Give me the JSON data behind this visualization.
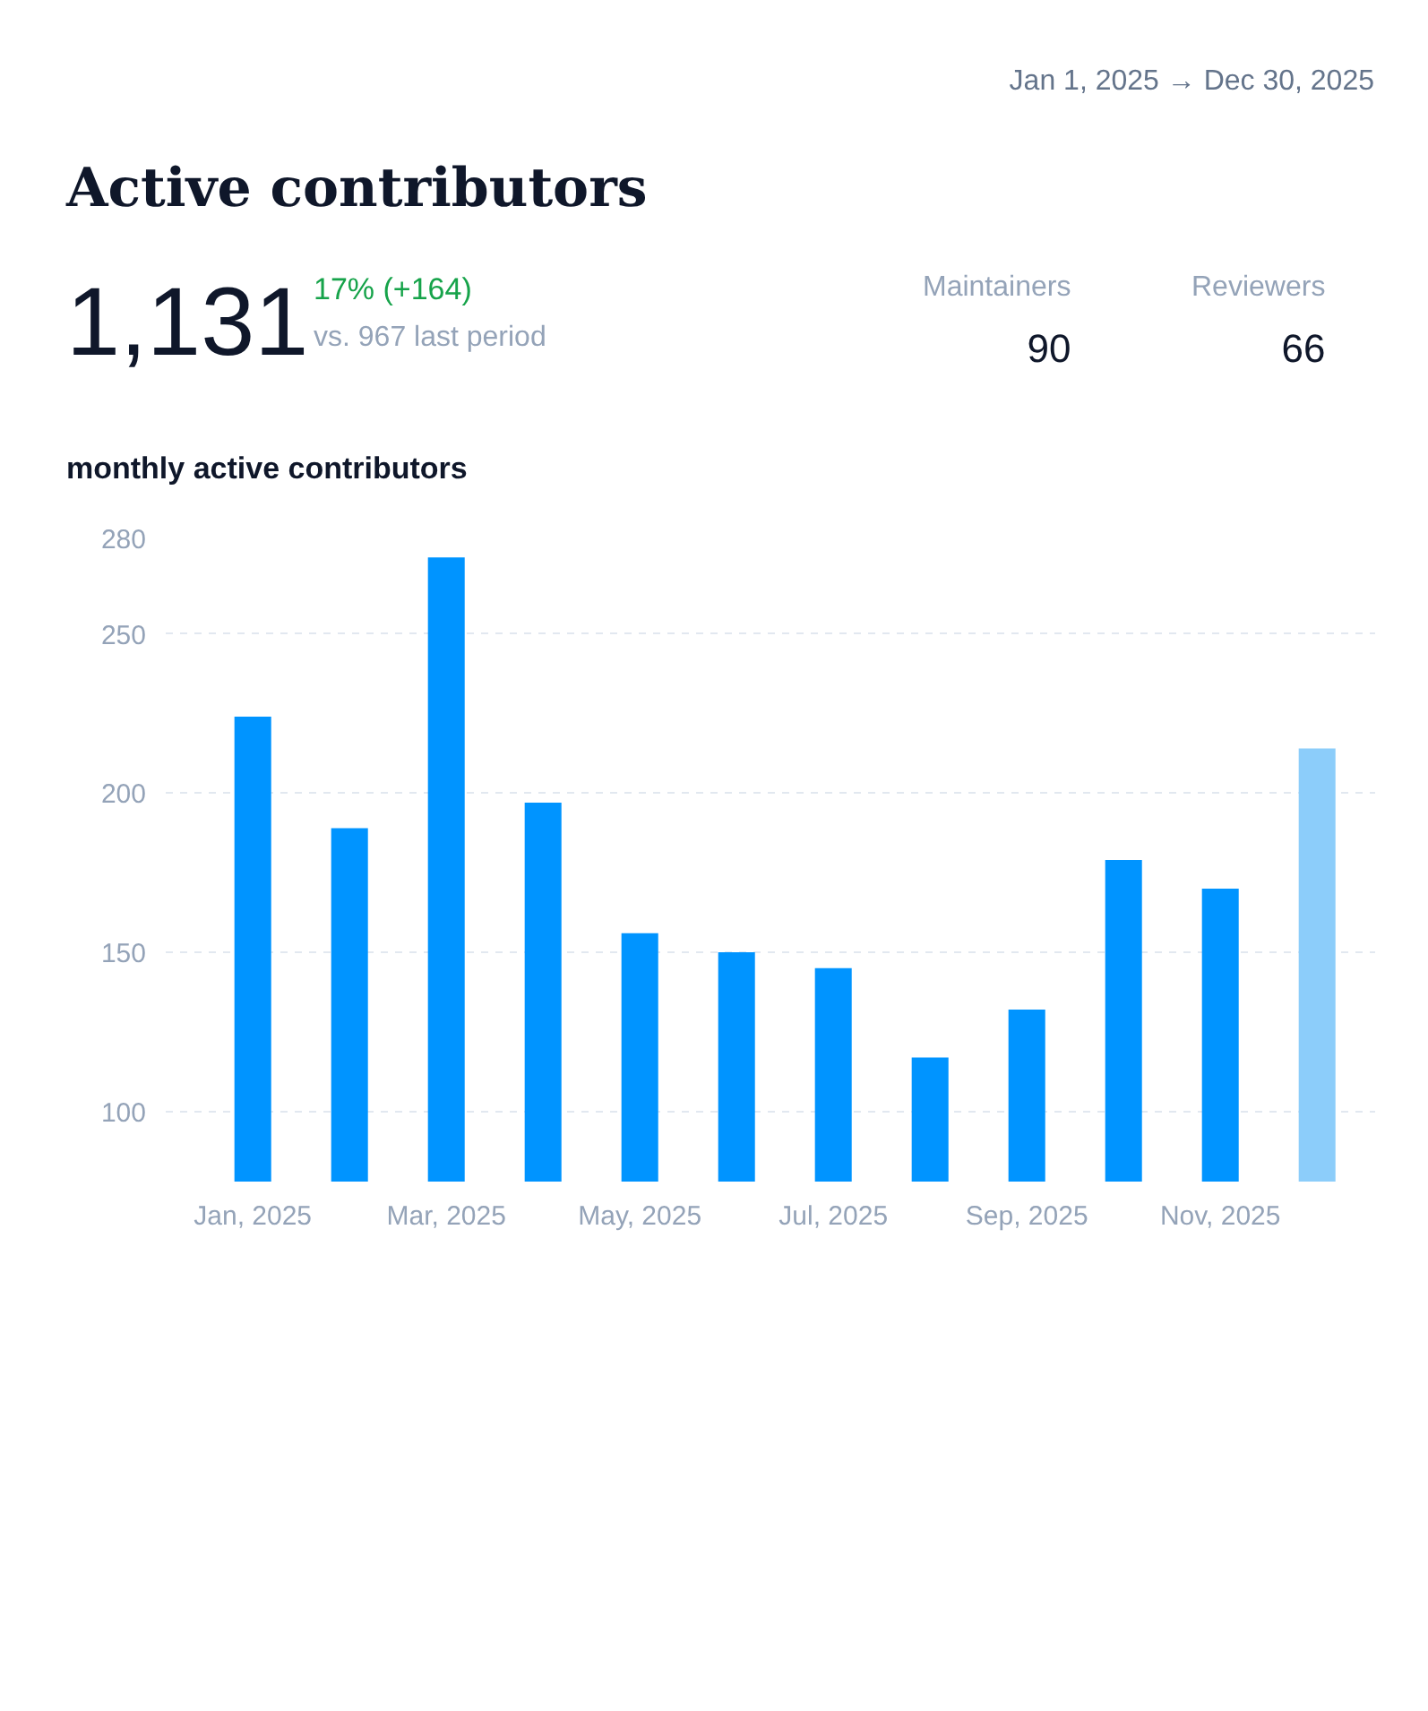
{
  "chart_data": {
    "type": "bar",
    "title": "Active contributors",
    "subtitle": "monthly active contributors",
    "annotations": [
      "Jan 1, 2025 → Dec 30, 2025",
      "1,131",
      "17% (+164)",
      "vs. 967 last period",
      "Maintainers",
      "90",
      "Reviewers",
      "66"
    ],
    "categories": [
      "Jan, 2025",
      null,
      "Mar, 2025",
      null,
      "May, 2025",
      null,
      "Jul, 2025",
      null,
      "Sep, 2025",
      null,
      "Nov, 2025",
      null
    ],
    "values": [
      224,
      189,
      274,
      197,
      156,
      150,
      145,
      117,
      132,
      179,
      170,
      214
    ],
    "colors": [
      "#0094ff",
      "#0094ff",
      "#0094ff",
      "#0094ff",
      "#0094ff",
      "#0094ff",
      "#0094ff",
      "#0094ff",
      "#0094ff",
      "#0094ff",
      "#0094ff",
      "#8ccdfa"
    ],
    "ylim": [
      78,
      280
    ],
    "yticks": [
      100,
      150,
      200,
      250,
      280
    ],
    "grid": "y"
  }
}
